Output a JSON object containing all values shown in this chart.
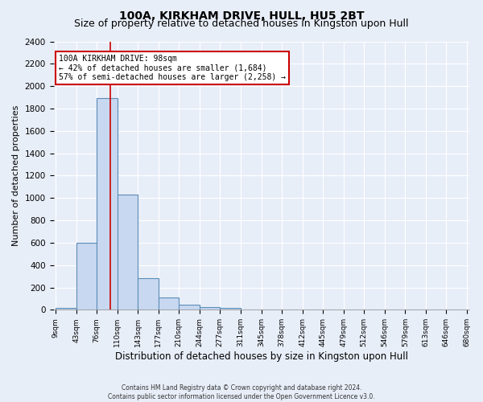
{
  "title": "100A, KIRKHAM DRIVE, HULL, HU5 2BT",
  "subtitle": "Size of property relative to detached houses in Kingston upon Hull",
  "xlabel": "Distribution of detached houses by size in Kingston upon Hull",
  "ylabel": "Number of detached properties",
  "footer_line1": "Contains HM Land Registry data © Crown copyright and database right 2024.",
  "footer_line2": "Contains public sector information licensed under the Open Government Licence v3.0.",
  "bin_edges": [
    9,
    43,
    76,
    110,
    143,
    177,
    210,
    244,
    277,
    311,
    345,
    378,
    412,
    445,
    479,
    512,
    546,
    579,
    613,
    646,
    680
  ],
  "bar_heights": [
    20,
    600,
    1890,
    1030,
    280,
    110,
    45,
    25,
    20,
    0,
    0,
    0,
    0,
    0,
    0,
    0,
    0,
    0,
    0,
    0
  ],
  "bar_color": "#c8d8f0",
  "bar_edge_color": "#5b8db8",
  "bar_edge_width": 0.8,
  "property_size": 98,
  "red_line_color": "#cc0000",
  "annotation_text": "100A KIRKHAM DRIVE: 98sqm\n← 42% of detached houses are smaller (1,684)\n57% of semi-detached houses are larger (2,258) →",
  "annotation_box_color": "#ffffff",
  "annotation_box_edge_color": "#cc0000",
  "ylim": [
    0,
    2400
  ],
  "yticks": [
    0,
    200,
    400,
    600,
    800,
    1000,
    1200,
    1400,
    1600,
    1800,
    2000,
    2200,
    2400
  ],
  "background_color": "#e8eef8",
  "grid_color": "#ffffff",
  "title_fontsize": 10,
  "subtitle_fontsize": 9,
  "ylabel_fontsize": 8,
  "xlabel_fontsize": 8.5
}
